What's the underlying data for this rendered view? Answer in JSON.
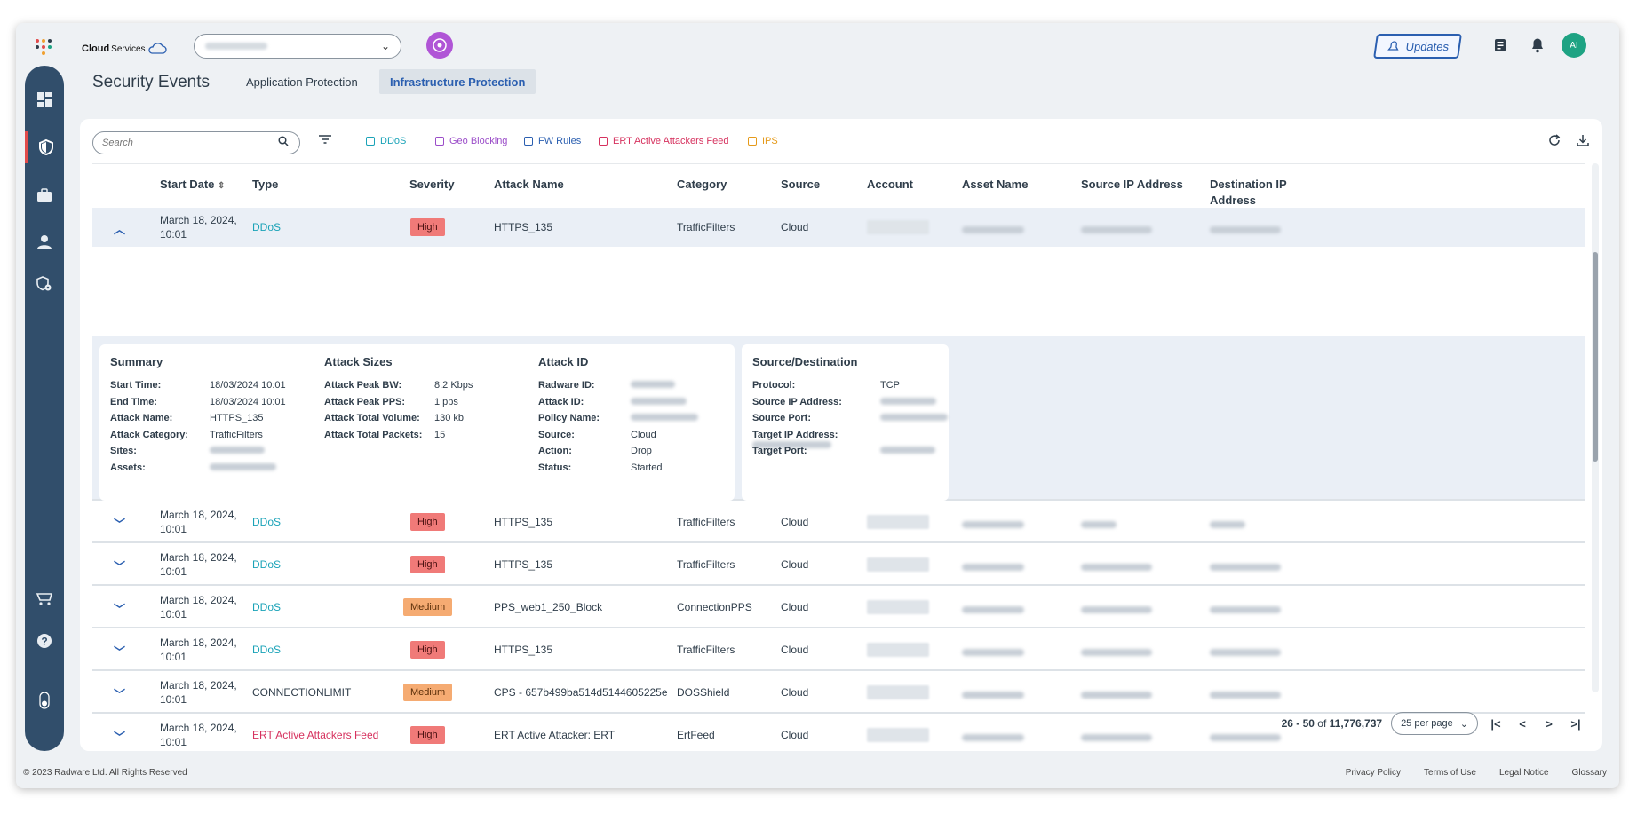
{
  "header": {
    "brand": "Cloud",
    "brand_sub": "Services",
    "updates_label": "Updates",
    "avatar_initials": "AI"
  },
  "tabs": {
    "page_title": "Security Events",
    "items": [
      "Application Protection",
      "Infrastructure Protection"
    ],
    "active": "Infrastructure Protection"
  },
  "search": {
    "placeholder": "Search"
  },
  "filters": [
    {
      "label": "DDoS",
      "color": "#1ba3b8"
    },
    {
      "label": "Geo Blocking",
      "color": "#9b4dc9"
    },
    {
      "label": "FW Rules",
      "color": "#2b5fb0"
    },
    {
      "label": "ERT Active Attackers Feed",
      "color": "#d6315e"
    },
    {
      "label": "IPS",
      "color": "#e59a1a"
    }
  ],
  "table": {
    "columns": [
      "Start Date",
      "Type",
      "Severity",
      "Attack Name",
      "Category",
      "Source",
      "Account",
      "Asset Name",
      "Source IP Address",
      "Destination IP Address"
    ],
    "rows": [
      {
        "date": "March 18, 2024,",
        "time": "10:01",
        "type": "DDoS",
        "type_color": "#1ba3b8",
        "severity": "High",
        "attack": "HTTPS_135",
        "category": "TrafficFilters",
        "source": "Cloud"
      },
      {
        "date": "March 18, 2024,",
        "time": "10:01",
        "type": "DDoS",
        "type_color": "#1ba3b8",
        "severity": "High",
        "attack": "HTTPS_135",
        "category": "TrafficFilters",
        "source": "Cloud"
      },
      {
        "date": "March 18, 2024,",
        "time": "10:01",
        "type": "DDoS",
        "type_color": "#1ba3b8",
        "severity": "High",
        "attack": "HTTPS_135",
        "category": "TrafficFilters",
        "source": "Cloud"
      },
      {
        "date": "March 18, 2024,",
        "time": "10:01",
        "type": "DDoS",
        "type_color": "#1ba3b8",
        "severity": "Medium",
        "attack": "PPS_web1_250_Block",
        "category": "ConnectionPPS",
        "source": "Cloud"
      },
      {
        "date": "March 18, 2024,",
        "time": "10:01",
        "type": "DDoS",
        "type_color": "#1ba3b8",
        "severity": "High",
        "attack": "HTTPS_135",
        "category": "TrafficFilters",
        "source": "Cloud"
      },
      {
        "date": "March 18, 2024,",
        "time": "10:01",
        "type": "CONNECTIONLIMIT",
        "type_color": "#2f3d4a",
        "severity": "Medium",
        "attack": "CPS - 657b499ba514d5144605225e",
        "category": "DOSShield",
        "source": "Cloud"
      },
      {
        "date": "March 18, 2024,",
        "time": "10:01",
        "type": "ERT Active Attackers Feed",
        "type_color": "#d6315e",
        "severity": "High",
        "attack": "ERT Active Attacker: ERT",
        "category": "ErtFeed",
        "source": "Cloud"
      }
    ]
  },
  "details": {
    "summary": {
      "title": "Summary",
      "fields": [
        {
          "k": "Start Time:",
          "v": "18/03/2024 10:01"
        },
        {
          "k": "End Time:",
          "v": "18/03/2024 10:01"
        },
        {
          "k": "Attack Name:",
          "v": "HTTPS_135"
        },
        {
          "k": "Attack Category:",
          "v": "TrafficFilters"
        },
        {
          "k": "Sites:",
          "v": ""
        },
        {
          "k": "Assets:",
          "v": ""
        }
      ]
    },
    "sizes": {
      "title": "Attack Sizes",
      "fields": [
        {
          "k": "Attack Peak BW:",
          "v": "8.2 Kbps"
        },
        {
          "k": "Attack Peak PPS:",
          "v": "1 pps"
        },
        {
          "k": "Attack Total Volume:",
          "v": "130 kb"
        },
        {
          "k": "Attack Total Packets:",
          "v": "15"
        }
      ]
    },
    "attack_id": {
      "title": "Attack ID",
      "fields": [
        {
          "k": "Radware ID:",
          "v": ""
        },
        {
          "k": "Attack ID:",
          "v": ""
        },
        {
          "k": "Policy Name:",
          "v": ""
        },
        {
          "k": "Source:",
          "v": "Cloud"
        },
        {
          "k": "Action:",
          "v": "Drop"
        },
        {
          "k": "Status:",
          "v": "Started"
        }
      ]
    },
    "srcdst": {
      "title": "Source/Destination",
      "fields": [
        {
          "k": "Protocol:",
          "v": "TCP"
        },
        {
          "k": "Source IP Address:",
          "v": ""
        },
        {
          "k": "Source Port:",
          "v": ""
        },
        {
          "k": "Target IP Address:",
          "v": ""
        },
        {
          "k": "Target Port:",
          "v": ""
        }
      ]
    }
  },
  "pager": {
    "range": "26 - 50",
    "of_label": "of",
    "total": "11,776,737",
    "per_page": "25 per page"
  },
  "footer": {
    "copyright": "© 2023 Radware Ltd. All Rights Reserved",
    "links": [
      "Privacy Policy",
      "Terms of Use",
      "Legal Notice",
      "Glossary"
    ]
  }
}
